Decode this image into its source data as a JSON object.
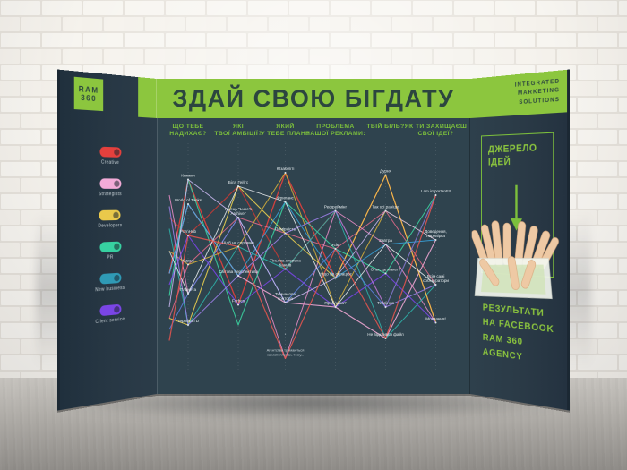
{
  "colors": {
    "green": "#8cc63e",
    "green2": "#7cbf3c",
    "dark": "#2c463f",
    "panel": "#2f434e"
  },
  "left_panel": {
    "logo": {
      "line1": "RAM",
      "line2": "360"
    },
    "legend": [
      {
        "label": "Creative",
        "color": "#e5403d"
      },
      {
        "label": "Strategists",
        "color": "#f3abd8"
      },
      {
        "label": "Developers",
        "color": "#eac94b"
      },
      {
        "label": "PR",
        "color": "#37d1a1"
      },
      {
        "label": "New business",
        "color": "#2f9ab5"
      },
      {
        "label": "Client service",
        "color": "#7a45e6"
      }
    ]
  },
  "center_panel": {
    "title": "ЗДАЙ СВОЮ БІГДАТУ"
  },
  "right_panel": {
    "header_lines": [
      "INTEGRATED",
      "MARKETING",
      "SOLUTIONS"
    ],
    "idea_box_title_lines": [
      "ДЖЕРЕЛО",
      "ІДЕЙ"
    ],
    "arrow_icon": "down-arrow",
    "hands_icon": "hands-in-box",
    "results_lines": [
      "РЕЗУЛЬТАТИ",
      "НА FACEBOOK",
      "RAM 360 AGENCY"
    ]
  },
  "chart_data": {
    "type": "parallel-coordinates",
    "title": "ЗДАЙ СВОЮ БІГДАТУ",
    "legend_position": "left-wing",
    "grid": "dashed vertical axis guides",
    "axes": [
      {
        "label": "ЩО ТЕБЕ\nНАДИХАЄ?",
        "x": 0.1,
        "nodes": [
          {
            "label": "Книжки",
            "y": 0.13
          },
          {
            "label": "World of Tanks",
            "y": 0.24
          },
          {
            "label": "PornHub",
            "y": 0.38
          },
          {
            "label": "Кураж",
            "y": 0.51
          },
          {
            "label": "Планета",
            "y": 0.64
          },
          {
            "label": "Термінал D",
            "y": 0.78
          }
        ]
      },
      {
        "label": "ЯКІ\nТВОЇ АМБІЦІЇ?",
        "x": 0.26,
        "nodes": [
          {
            "label": "Білл Гейтс",
            "y": 0.16
          },
          {
            "label": "Кінець \"Luke's\nArchive\"",
            "y": 0.3
          },
          {
            "label": "Щоб не соромно",
            "y": 0.43
          },
          {
            "label": "Світова перспектива",
            "y": 0.56
          },
          {
            "label": "Forbes",
            "y": 0.69
          }
        ]
      },
      {
        "label": "ЯКИЙ\nУ ТЕБЕ ПЛАН?",
        "x": 0.41,
        "nodes": [
          {
            "label": "Юзабіліті",
            "y": 0.1
          },
          {
            "label": "Фриланс",
            "y": 0.23
          },
          {
            "label": "Помірність",
            "y": 0.37
          },
          {
            "label": "Тіньова сторона\nКаннів",
            "y": 0.53
          },
          {
            "label": "Тимчасова\nконтора",
            "y": 0.68
          },
          {
            "label": "*",
            "y": 0.84,
            "note": true
          },
          {
            "label": "Агентства тримаються\nна моїх плечах, тому...",
            "y": 0.93,
            "note": true
          }
        ]
      },
      {
        "label": "ПРОБЛЕМА\nНАШОЇ РЕКЛАМИ:",
        "x": 0.57,
        "nodes": [
          {
            "label": "Рефреймінг",
            "y": 0.27
          },
          {
            "label": "Усім",
            "y": 0.44
          },
          {
            "label": "Ніщо не спрацює",
            "y": 0.57
          },
          {
            "label": "Проблема?",
            "y": 0.7
          }
        ]
      },
      {
        "label": "ТВІЙ БІЛЬ?",
        "x": 0.73,
        "nodes": [
          {
            "label": "Дурня",
            "y": 0.11
          },
          {
            "label": "Так усі раніше",
            "y": 0.27
          },
          {
            "label": "Завтра",
            "y": 0.42
          },
          {
            "label": "Олег, де макет?",
            "y": 0.55
          },
          {
            "label": "Терпіння",
            "y": 0.7
          },
          {
            "label": "Не відкрився файл",
            "y": 0.84
          }
        ]
      },
      {
        "label": "ЯК ТИ ЗАХИЩАЄШ\nСВОЇ ІДЕЇ?",
        "x": 0.89,
        "nodes": [
          {
            "label": "I am important!!!",
            "y": 0.2
          },
          {
            "label": "Доведення,\nперевірка",
            "y": 0.4
          },
          {
            "label": "Всім самі\nсобі куратори",
            "y": 0.6
          },
          {
            "label": "Мовчання!",
            "y": 0.77
          }
        ]
      }
    ],
    "series": [
      {
        "name": "creative-1",
        "color": "#e8403c",
        "w": 1.3,
        "fan": 0.55,
        "y": [
          0.13,
          0.69,
          0.1,
          0.57,
          0.11,
          0.77
        ]
      },
      {
        "name": "creative-2",
        "color": "#c13a35",
        "w": 1.2,
        "fan": 0.3,
        "y": [
          0.38,
          0.16,
          0.53,
          0.27,
          0.7,
          0.2
        ]
      },
      {
        "name": "creative-3",
        "color": "#e46a8a",
        "w": 1,
        "fan": 0.75,
        "y": [
          0.51,
          0.3,
          0.37,
          0.44,
          0.27,
          0.6
        ]
      },
      {
        "name": "strategist-1",
        "color": "#f2a8d6",
        "w": 1.1,
        "fan": 0.55,
        "y": [
          0.24,
          0.56,
          0.68,
          0.7,
          0.84,
          0.4
        ]
      },
      {
        "name": "strategist-2",
        "color": "#e98cc6",
        "w": 1,
        "fan": 0.2,
        "y": [
          0.64,
          0.3,
          0.93,
          0.27,
          0.42,
          0.77
        ]
      },
      {
        "name": "developer-1",
        "color": "#ecd04f",
        "w": 1.1,
        "fan": 0.75,
        "y": [
          0.78,
          0.16,
          0.37,
          0.57,
          0.11,
          0.77
        ]
      },
      {
        "name": "developer-2",
        "color": "#d9b23a",
        "w": 1,
        "fan": 0.45,
        "y": [
          0.51,
          0.43,
          0.1,
          0.7,
          0.27,
          0.4
        ]
      },
      {
        "name": "pr-1",
        "color": "#3bd3a0",
        "w": 1.1,
        "fan": 0.65,
        "y": [
          0.13,
          0.78,
          0.23,
          0.44,
          0.55,
          0.2
        ]
      },
      {
        "name": "pr-2",
        "color": "#2fb3ab",
        "w": 1,
        "fan": 0.35,
        "y": [
          0.78,
          0.43,
          0.53,
          0.27,
          0.84,
          0.6
        ]
      },
      {
        "name": "newbiz-1",
        "color": "#38a3dc",
        "w": 1,
        "fan": 0.55,
        "y": [
          0.24,
          0.56,
          0.23,
          0.57,
          0.42,
          0.4
        ]
      },
      {
        "name": "newbiz-2",
        "color": "#5d7fe0",
        "w": 1,
        "fan": 0.8,
        "y": [
          0.64,
          0.3,
          0.68,
          0.44,
          0.7,
          0.2
        ]
      },
      {
        "name": "client-1",
        "color": "#7a45e6",
        "w": 1.1,
        "fan": 0.6,
        "y": [
          0.38,
          0.69,
          0.53,
          0.7,
          0.55,
          0.77
        ]
      },
      {
        "name": "client-2",
        "color": "#9d7fe8",
        "w": 1,
        "fan": 0.25,
        "y": [
          0.78,
          0.56,
          0.37,
          0.27,
          0.7,
          0.6
        ]
      },
      {
        "name": "client-3",
        "color": "#c7b6ee",
        "w": 1,
        "fan": 0.7,
        "y": [
          0.13,
          0.3,
          0.68,
          0.57,
          0.27,
          0.4
        ]
      },
      {
        "name": "white-line",
        "color": "#e9edef",
        "w": 0.9,
        "fan": 0.45,
        "y": [
          0.64,
          0.16,
          0.23,
          0.7,
          0.42,
          0.6
        ]
      },
      {
        "name": "creative-4",
        "color": "#e5544f",
        "w": 1.2,
        "fan": 0.85,
        "y": [
          0.38,
          0.43,
          0.93,
          0.44,
          0.84,
          0.2
        ]
      }
    ]
  }
}
